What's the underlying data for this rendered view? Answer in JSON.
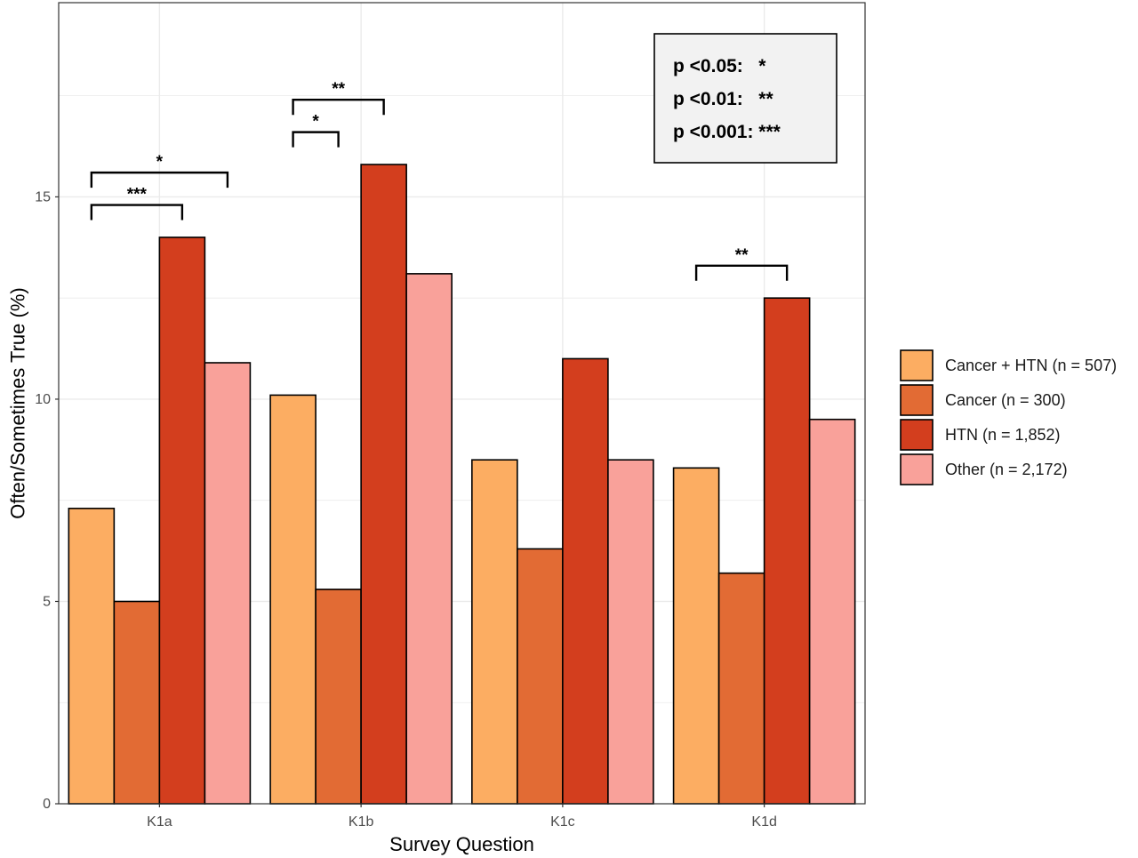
{
  "chart_data": {
    "type": "bar",
    "xlabel": "Survey Question",
    "ylabel": "Often/Sometimes True (%)",
    "ylim": [
      0,
      19.8
    ],
    "yticks": [
      0,
      5,
      10,
      15
    ],
    "grid": true,
    "legend_position": "right",
    "categories": [
      "K1a",
      "K1b",
      "K1c",
      "K1d"
    ],
    "series": [
      {
        "name": "Cancer + HTN (n = 507)",
        "color": "#fcad62",
        "values": [
          7.3,
          10.1,
          8.5,
          8.3
        ]
      },
      {
        "name": "Cancer (n = 300)",
        "color": "#e26b34",
        "values": [
          5.0,
          5.3,
          6.3,
          5.7
        ]
      },
      {
        "name": "HTN (n = 1,852)",
        "color": "#d33e1e",
        "values": [
          14.0,
          15.8,
          11.0,
          12.5
        ]
      },
      {
        "name": "Other (n = 2,172)",
        "color": "#f9a19a",
        "values": [
          10.9,
          13.1,
          8.5,
          9.5
        ]
      }
    ],
    "significance": [
      {
        "category": 0,
        "from": 0,
        "to": 2,
        "label": "***",
        "y": 14.8
      },
      {
        "category": 0,
        "from": 0,
        "to": 3,
        "label": "*",
        "y": 15.6
      },
      {
        "category": 1,
        "from": 0,
        "to": 1,
        "label": "*",
        "y": 16.6
      },
      {
        "category": 1,
        "from": 0,
        "to": 2,
        "label": "**",
        "y": 17.4
      },
      {
        "category": 3,
        "from": 0,
        "to": 2,
        "label": "**",
        "y": 13.3
      }
    ],
    "significance_key": [
      "p <0.05:   *",
      "p <0.01:   **",
      "p <0.001: ***"
    ]
  }
}
